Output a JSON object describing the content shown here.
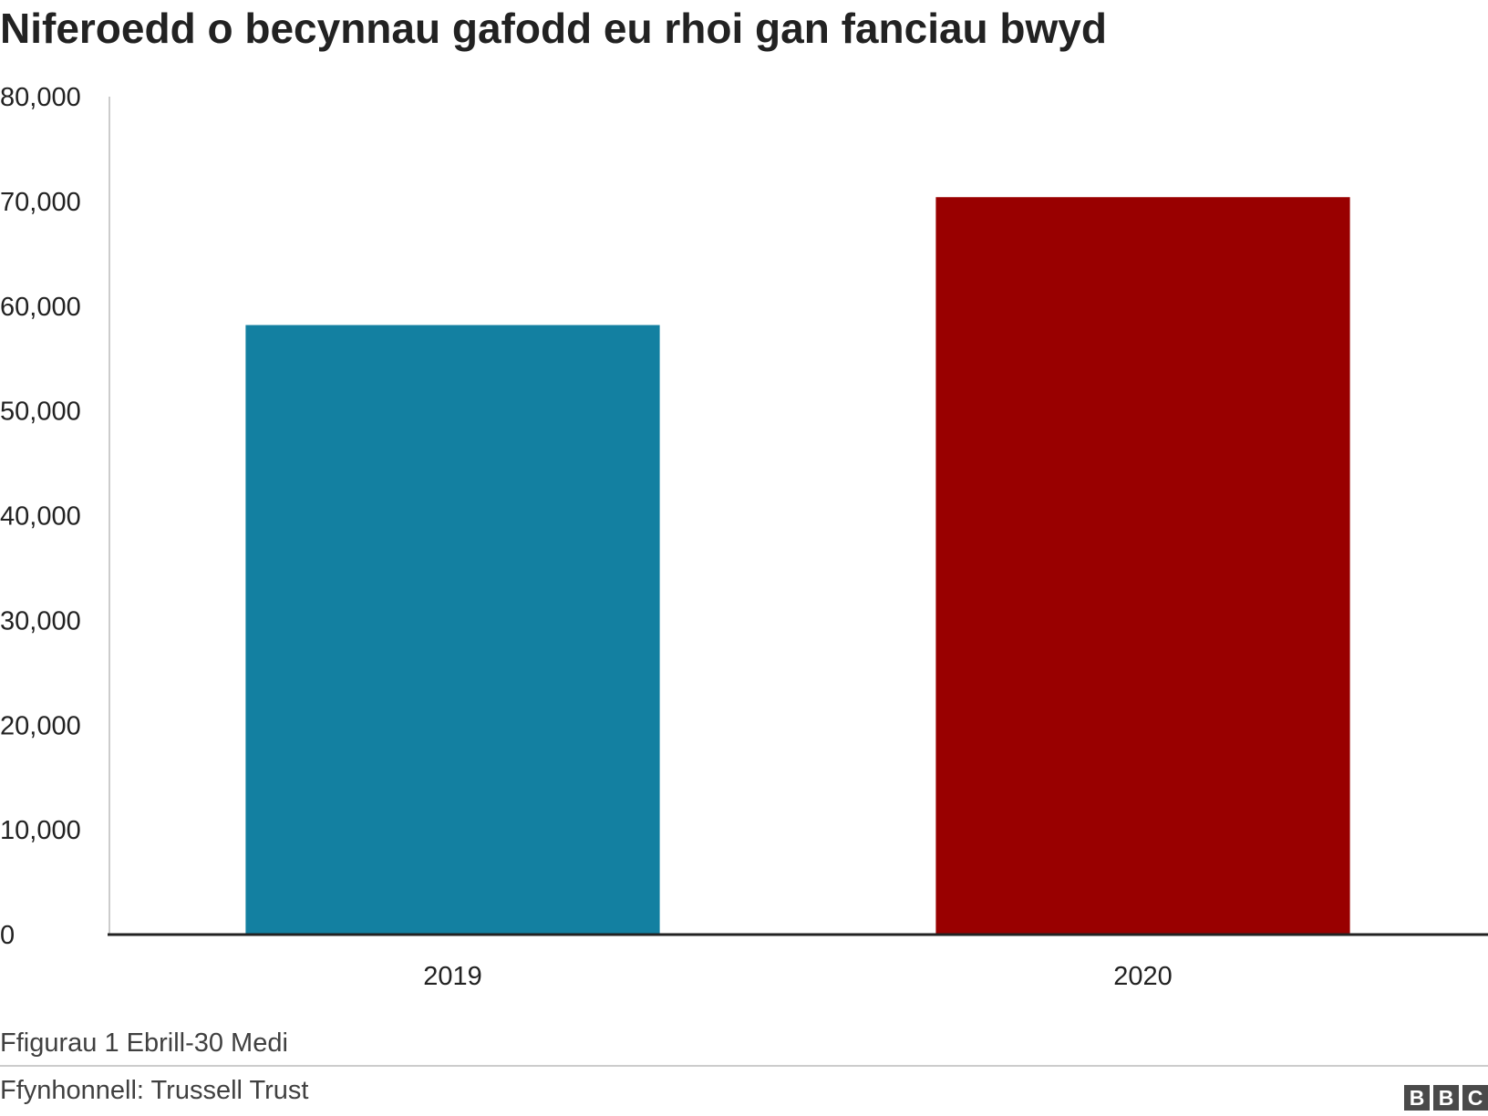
{
  "chart_data": {
    "type": "bar",
    "title": "Niferoedd o becynnau gafodd eu rhoi gan fanciau bwyd",
    "categories": [
      "2019",
      "2020"
    ],
    "values": [
      58193,
      70403
    ],
    "colors": [
      "#1380a1",
      "#990000"
    ],
    "ylim": [
      0,
      80000
    ],
    "yticks": [
      0,
      10000,
      20000,
      30000,
      40000,
      50000,
      60000,
      70000,
      80000
    ],
    "ytick_labels": [
      "0",
      "10,000",
      "20,000",
      "30,000",
      "40,000",
      "50,000",
      "60,000",
      "70,000",
      "80,000"
    ],
    "xlabel": "",
    "ylabel": "",
    "grid": false,
    "legend": "none"
  },
  "note": "Ffigurau 1 Ebrill-30 Medi",
  "source": "Ffynhonnell: Trussell Trust",
  "logo": {
    "letters": [
      "B",
      "B",
      "C"
    ],
    "color": "#4a4a4a"
  },
  "colors": {
    "axis": "#222222",
    "yaxis_line": "#cccccc",
    "text": "#222222",
    "footer_text": "#404040"
  }
}
